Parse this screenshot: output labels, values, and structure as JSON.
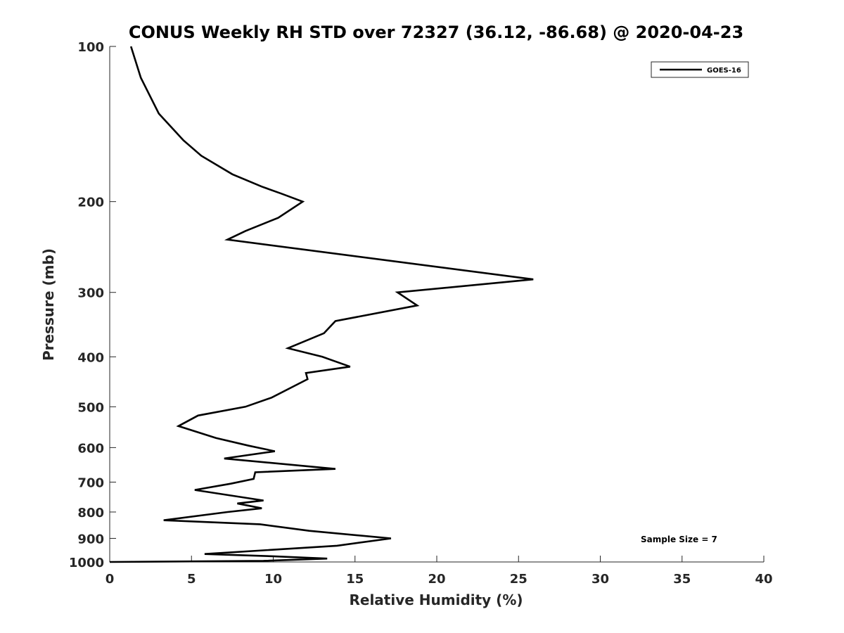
{
  "chart_data": {
    "type": "line",
    "title": "CONUS Weekly RH STD over 72327 (36.12, -86.68) @ 2020-04-23",
    "xlabel": "Relative Humidity (%)",
    "ylabel": "Pressure (mb)",
    "xlim": [
      0,
      40
    ],
    "ylim": [
      100,
      1000
    ],
    "yscale": "log",
    "y_reversed": true,
    "grid": false,
    "x_ticks": [
      0,
      5,
      10,
      15,
      20,
      25,
      30,
      35,
      40
    ],
    "x_tick_labels": [
      "0",
      "5",
      "10",
      "15",
      "20",
      "25",
      "30",
      "35",
      "40"
    ],
    "y_ticks": [
      100,
      200,
      300,
      400,
      500,
      600,
      700,
      800,
      900,
      1000
    ],
    "y_tick_labels": [
      "100",
      "200",
      "300",
      "400",
      "500",
      "600",
      "700",
      "800",
      "900",
      "1000"
    ],
    "legend": {
      "position": "top-right",
      "entries": [
        "GOES-16"
      ]
    },
    "annotation": "Sample Size = 7",
    "series": [
      {
        "name": "GOES-16",
        "color": "#000000",
        "x": [
          1.3,
          1.9,
          3.0,
          4.5,
          5.6,
          7.5,
          9.3,
          10.5,
          11.8,
          10.3,
          8.3,
          7.2,
          25.9,
          17.6,
          18.8,
          13.8,
          13.1,
          10.9,
          13.0,
          14.7,
          12.0,
          12.1,
          9.9,
          8.3,
          5.4,
          4.2,
          6.5,
          8.5,
          10.1,
          7.0,
          13.8,
          8.9,
          8.8,
          7.4,
          5.2,
          9.4,
          7.8,
          9.3,
          7.2,
          3.3,
          9.2,
          12.2,
          17.2,
          13.9,
          5.8,
          10.0,
          13.3,
          9.4,
          0.0
        ],
        "y": [
          100,
          115,
          135,
          152,
          163,
          177,
          187,
          193,
          200,
          215,
          228,
          237,
          283,
          300,
          318,
          341,
          360,
          385,
          400,
          418,
          430,
          442,
          480,
          500,
          520,
          545,
          575,
          595,
          610,
          630,
          660,
          670,
          690,
          705,
          725,
          760,
          770,
          787,
          800,
          830,
          845,
          870,
          900,
          930,
          965,
          975,
          985,
          995,
          1000
        ]
      }
    ]
  }
}
